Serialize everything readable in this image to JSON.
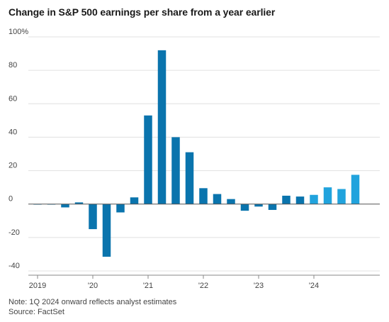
{
  "chart_data": {
    "type": "bar",
    "title": "Change in S&P 500 earnings per share from a year earlier",
    "y_tick_labels": [
      "100%",
      "80",
      "60",
      "40",
      "20",
      "0",
      "-20",
      "-40"
    ],
    "y_tick_values": [
      100,
      80,
      60,
      40,
      20,
      0,
      -20,
      -40
    ],
    "ylim": [
      -40,
      100
    ],
    "x_tick_labels": [
      "2019",
      "'20",
      "'21",
      "'22",
      "'23",
      "'24"
    ],
    "categories": [
      "1Q 2019",
      "2Q 2019",
      "3Q 2019",
      "4Q 2019",
      "1Q 2020",
      "2Q 2020",
      "3Q 2020",
      "4Q 2020",
      "1Q 2021",
      "2Q 2021",
      "3Q 2021",
      "4Q 2021",
      "1Q 2022",
      "2Q 2022",
      "3Q 2022",
      "4Q 2022",
      "1Q 2023",
      "2Q 2023",
      "3Q 2023",
      "4Q 2023",
      "1Q 2024",
      "2Q 2024",
      "3Q 2024",
      "4Q 2024"
    ],
    "values": [
      -0.3,
      0,
      -2,
      1,
      -15,
      -31.5,
      -5,
      4,
      53,
      92,
      40,
      31,
      9.5,
      6,
      3,
      -4,
      -1.5,
      -3.5,
      5,
      4.5,
      5.5,
      10,
      9,
      17.5
    ],
    "estimate_start_index": 20,
    "colors": {
      "actual": "#0a74ad",
      "estimate": "#21a3dd"
    },
    "grid": true
  },
  "footer": {
    "note": "Note: 1Q 2024 onward reflects analyst estimates",
    "source": "Source: FactSet"
  }
}
